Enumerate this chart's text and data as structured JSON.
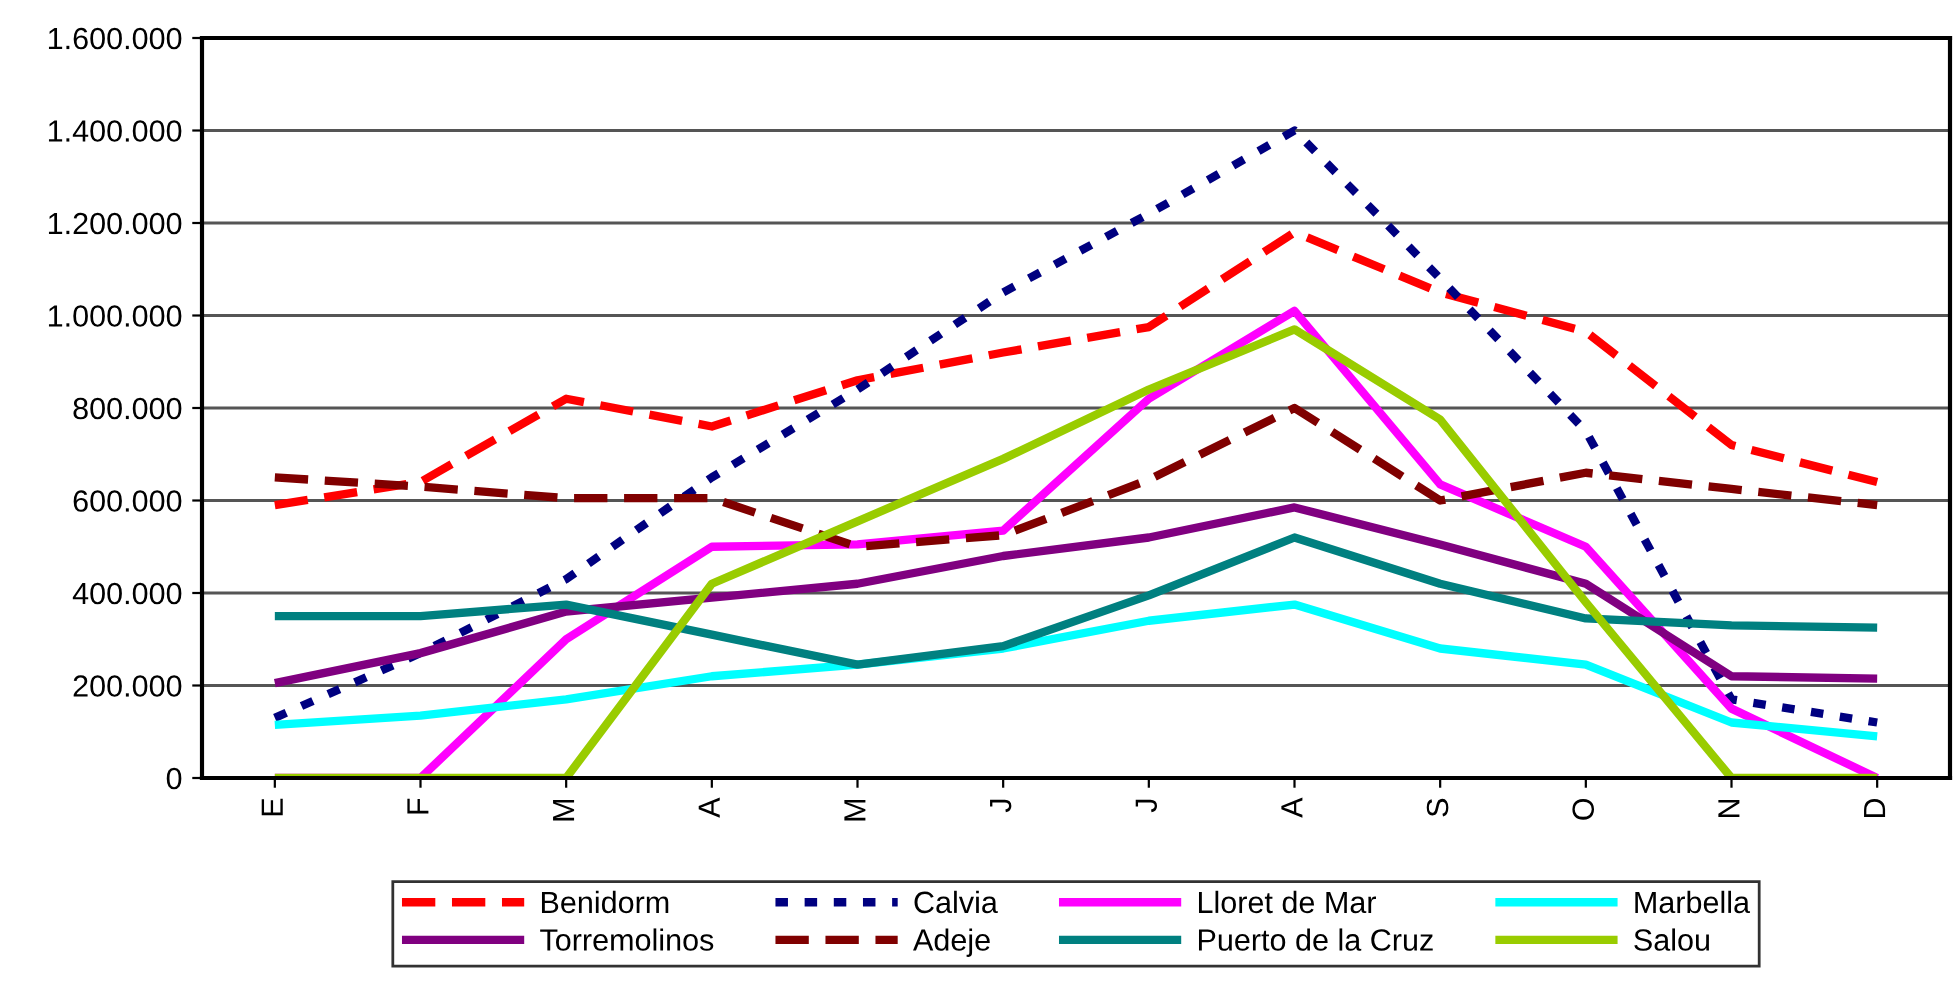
{
  "chart_data": {
    "type": "line",
    "categories": [
      "E",
      "F",
      "M",
      "A",
      "M",
      "J",
      "J",
      "A",
      "S",
      "O",
      "N",
      "D"
    ],
    "series": [
      {
        "name": "Benidorm",
        "color": "#ff0000",
        "line_style": "dashed",
        "values": [
          590000,
          640000,
          820000,
          760000,
          860000,
          920000,
          975000,
          1180000,
          1050000,
          965000,
          720000,
          640000
        ]
      },
      {
        "name": "Calvia",
        "color": "#000080",
        "line_style": "dotted",
        "values": [
          130000,
          270000,
          430000,
          650000,
          840000,
          1050000,
          1220000,
          1400000,
          1080000,
          750000,
          170000,
          120000
        ]
      },
      {
        "name": "Lloret de Mar",
        "color": "#ff00ff",
        "line_style": "solid",
        "values": [
          0,
          0,
          300000,
          500000,
          505000,
          535000,
          820000,
          1010000,
          635000,
          500000,
          150000,
          0
        ]
      },
      {
        "name": "Marbella",
        "color": "#00ffff",
        "line_style": "solid",
        "values": [
          115000,
          135000,
          170000,
          220000,
          245000,
          280000,
          340000,
          375000,
          280000,
          245000,
          120000,
          90000
        ]
      },
      {
        "name": "Torremolinos",
        "color": "#800080",
        "line_style": "solid",
        "values": [
          205000,
          270000,
          360000,
          390000,
          420000,
          480000,
          520000,
          585000,
          505000,
          420000,
          220000,
          215000
        ]
      },
      {
        "name": "Adeje",
        "color": "#800000",
        "line_style": "dashed",
        "values": [
          650000,
          630000,
          605000,
          605000,
          500000,
          525000,
          645000,
          800000,
          600000,
          660000,
          625000,
          590000
        ]
      },
      {
        "name": "Puerto de la Cruz",
        "color": "#008080",
        "line_style": "solid",
        "values": [
          350000,
          350000,
          375000,
          310000,
          245000,
          285000,
          395000,
          520000,
          420000,
          345000,
          330000,
          325000
        ]
      },
      {
        "name": "Salou",
        "color": "#99cc00",
        "line_style": "solid",
        "values": [
          0,
          0,
          0,
          420000,
          555000,
          690000,
          840000,
          970000,
          775000,
          380000,
          0,
          0
        ]
      }
    ],
    "ylim": [
      0,
      1600000
    ],
    "yticks": [
      {
        "value": 0,
        "label": "0"
      },
      {
        "value": 200000,
        "label": "200.000"
      },
      {
        "value": 400000,
        "label": "400.000"
      },
      {
        "value": 600000,
        "label": "600.000"
      },
      {
        "value": 800000,
        "label": "800.000"
      },
      {
        "value": 1000000,
        "label": "1.000.000"
      },
      {
        "value": 1200000,
        "label": "1.200.000"
      },
      {
        "value": 1400000,
        "label": "1.400.000"
      },
      {
        "value": 1600000,
        "label": "1.600.000"
      }
    ],
    "grid": "y",
    "legend": "bottom",
    "marker": "none"
  }
}
